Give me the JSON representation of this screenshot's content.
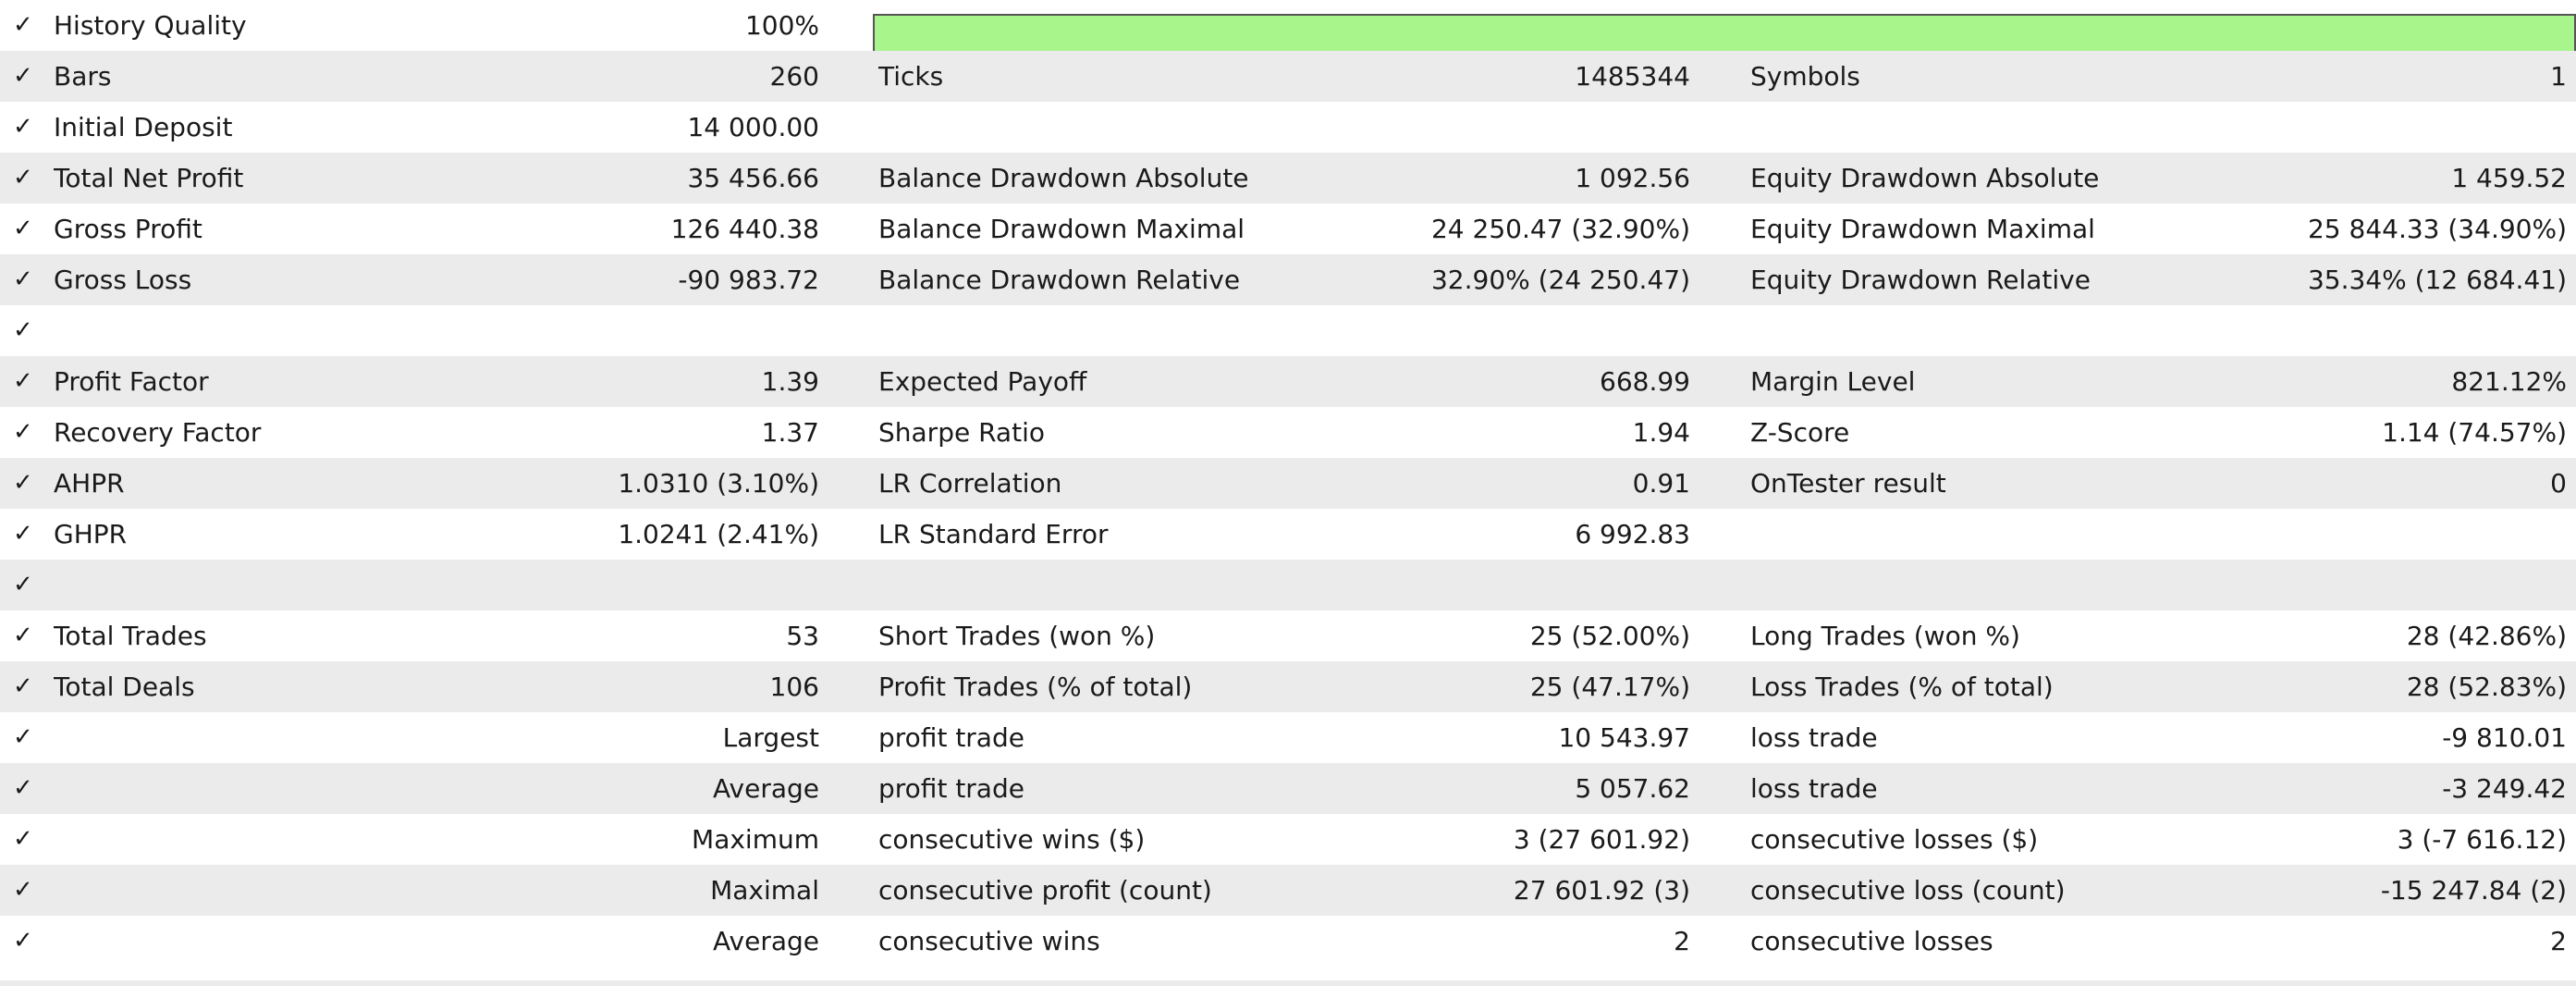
{
  "history_quality": {
    "label": "History Quality",
    "value": "100%",
    "fraction": 1.0,
    "bar_color": "#a8f58c"
  },
  "rows": [
    {
      "l1": "Bars",
      "v1": "260",
      "l2": "Ticks",
      "v2": "1485344",
      "l3": "Symbols",
      "v3": "1"
    },
    {
      "l1": "Initial Deposit",
      "v1": "14 000.00",
      "l2": "",
      "v2": "",
      "l3": "",
      "v3": ""
    },
    {
      "l1": "Total Net Profit",
      "v1": "35 456.66",
      "l2": "Balance Drawdown Absolute",
      "v2": "1 092.56",
      "l3": "Equity Drawdown Absolute",
      "v3": "1 459.52"
    },
    {
      "l1": "Gross Profit",
      "v1": "126 440.38",
      "l2": "Balance Drawdown Maximal",
      "v2": "24 250.47 (32.90%)",
      "l3": "Equity Drawdown Maximal",
      "v3": "25 844.33 (34.90%)"
    },
    {
      "l1": "Gross Loss",
      "v1": "-90 983.72",
      "l2": "Balance Drawdown Relative",
      "v2": "32.90% (24 250.47)",
      "l3": "Equity Drawdown Relative",
      "v3": "35.34% (12 684.41)"
    },
    {
      "l1": "",
      "v1": "",
      "l2": "",
      "v2": "",
      "l3": "",
      "v3": ""
    },
    {
      "l1": "Profit Factor",
      "v1": "1.39",
      "l2": "Expected Payoff",
      "v2": "668.99",
      "l3": "Margin Level",
      "v3": "821.12%"
    },
    {
      "l1": "Recovery Factor",
      "v1": "1.37",
      "l2": "Sharpe Ratio",
      "v2": "1.94",
      "l3": "Z-Score",
      "v3": "1.14 (74.57%)"
    },
    {
      "l1": "AHPR",
      "v1": "1.0310 (3.10%)",
      "l2": "LR Correlation",
      "v2": "0.91",
      "l3": "OnTester result",
      "v3": "0"
    },
    {
      "l1": "GHPR",
      "v1": "1.0241 (2.41%)",
      "l2": "LR Standard Error",
      "v2": "6 992.83",
      "l3": "",
      "v3": ""
    },
    {
      "l1": "",
      "v1": "",
      "l2": "",
      "v2": "",
      "l3": "",
      "v3": ""
    },
    {
      "l1": "Total Trades",
      "v1": "53",
      "l2": "Short Trades (won %)",
      "v2": "25 (52.00%)",
      "l3": "Long Trades (won %)",
      "v3": "28 (42.86%)"
    },
    {
      "l1": "Total Deals",
      "v1": "106",
      "l2": "Profit Trades (% of total)",
      "v2": "25 (47.17%)",
      "l3": "Loss Trades (% of total)",
      "v3": "28 (52.83%)"
    },
    {
      "l1": "",
      "v1": "Largest",
      "l2": "profit trade",
      "v2": "10 543.97",
      "l3": "loss trade",
      "v3": "-9 810.01"
    },
    {
      "l1": "",
      "v1": "Average",
      "l2": "profit trade",
      "v2": "5 057.62",
      "l3": "loss trade",
      "v3": "-3 249.42"
    },
    {
      "l1": "",
      "v1": "Maximum",
      "l2": "consecutive wins ($)",
      "v2": "3 (27 601.92)",
      "l3": "consecutive losses ($)",
      "v3": "3 (-7 616.12)"
    },
    {
      "l1": "",
      "v1": "Maximal",
      "l2": "consecutive profit (count)",
      "v2": "27 601.92 (3)",
      "l3": "consecutive loss (count)",
      "v3": "-15 247.84 (2)"
    },
    {
      "l1": "",
      "v1": "Average",
      "l2": "consecutive wins",
      "v2": "2",
      "l3": "consecutive losses",
      "v3": "2"
    }
  ]
}
